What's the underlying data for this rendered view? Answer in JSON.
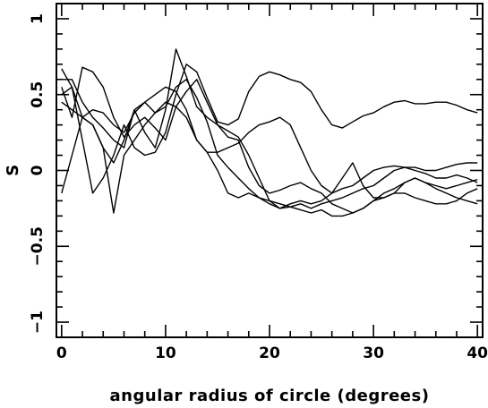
{
  "chart_data": {
    "type": "line",
    "xlabel": "angular radius of circle (degrees)",
    "ylabel": "S",
    "xlim": [
      -0.5,
      40.5
    ],
    "ylim": [
      -1.1,
      1.1
    ],
    "x_major_ticks": [
      0,
      10,
      20,
      30,
      40
    ],
    "x_minor_step": 2,
    "y_major_ticks": [
      -1,
      -0.5,
      0,
      0.5,
      1
    ],
    "y_minor_step": 0.1,
    "y_tick_labels": [
      "−1",
      "−0.5",
      "0",
      "0.5",
      "1"
    ],
    "grid": false,
    "line_color": "#000000",
    "x": [
      0,
      1,
      2,
      3,
      4,
      5,
      6,
      7,
      8,
      9,
      10,
      11,
      12,
      13,
      14,
      15,
      16,
      17,
      18,
      19,
      20,
      21,
      22,
      23,
      24,
      25,
      26,
      27,
      28,
      29,
      30,
      31,
      32,
      33,
      34,
      35,
      36,
      37,
      38,
      39,
      40
    ],
    "series": [
      {
        "values": [
          0.67,
          0.55,
          0.35,
          0.3,
          0.15,
          0.05,
          0.2,
          0.4,
          0.25,
          0.15,
          0.4,
          0.8,
          0.62,
          0.42,
          0.35,
          0.3,
          0.26,
          0.22,
          0.1,
          -0.05,
          -0.2,
          -0.25,
          -0.22,
          -0.2,
          -0.22,
          -0.2,
          -0.15,
          -0.05,
          0.05,
          -0.1,
          -0.18,
          -0.18,
          -0.15,
          -0.08,
          -0.05,
          -0.08,
          -0.12,
          -0.15,
          -0.18,
          -0.2,
          -0.22
        ]
      },
      {
        "values": [
          0.5,
          0.55,
          0.2,
          -0.15,
          -0.05,
          0.1,
          0.3,
          0.15,
          0.1,
          0.12,
          0.25,
          0.5,
          0.7,
          0.65,
          0.48,
          0.32,
          0.3,
          0.34,
          0.52,
          0.62,
          0.65,
          0.63,
          0.6,
          0.58,
          0.52,
          0.4,
          0.3,
          0.28,
          0.32,
          0.36,
          0.38,
          0.42,
          0.45,
          0.46,
          0.44,
          0.44,
          0.45,
          0.45,
          0.43,
          0.4,
          0.38
        ]
      },
      {
        "values": [
          0.55,
          0.35,
          0.68,
          0.65,
          0.55,
          0.35,
          0.22,
          0.3,
          0.35,
          0.28,
          0.2,
          0.42,
          0.52,
          0.6,
          0.45,
          0.3,
          0.22,
          0.2,
          0.02,
          -0.1,
          -0.15,
          -0.13,
          -0.1,
          -0.08,
          -0.12,
          -0.15,
          -0.22,
          -0.25,
          -0.28,
          -0.25,
          -0.2,
          -0.15,
          -0.12,
          -0.08,
          -0.05,
          -0.08,
          -0.1,
          -0.12,
          -0.1,
          -0.08,
          -0.06
        ]
      },
      {
        "values": [
          0.45,
          0.4,
          0.35,
          0.3,
          0.15,
          -0.28,
          0.1,
          0.2,
          0.3,
          0.38,
          0.45,
          0.42,
          0.35,
          0.2,
          0.12,
          0.0,
          -0.15,
          -0.18,
          -0.15,
          -0.18,
          -0.22,
          -0.25,
          -0.24,
          -0.22,
          -0.25,
          -0.22,
          -0.2,
          -0.18,
          -0.15,
          -0.12,
          -0.1,
          -0.05,
          0.0,
          0.02,
          0.02,
          0.0,
          0.0,
          0.02,
          0.04,
          0.05,
          0.05
        ]
      },
      {
        "values": [
          -0.15,
          0.1,
          0.35,
          0.4,
          0.38,
          0.3,
          0.25,
          0.38,
          0.45,
          0.5,
          0.55,
          0.52,
          0.4,
          0.2,
          0.12,
          0.12,
          0.15,
          0.18,
          0.25,
          0.3,
          0.32,
          0.35,
          0.3,
          0.15,
          0.0,
          -0.1,
          -0.15,
          -0.12,
          -0.1,
          -0.05,
          0.0,
          0.02,
          0.03,
          0.02,
          0.0,
          -0.02,
          -0.05,
          -0.05,
          -0.03,
          -0.05,
          -0.08
        ]
      },
      {
        "values": [
          0.6,
          0.6,
          0.45,
          0.35,
          0.28,
          0.2,
          0.15,
          0.4,
          0.45,
          0.38,
          0.42,
          0.55,
          0.6,
          0.48,
          0.32,
          0.1,
          0.02,
          -0.05,
          -0.12,
          -0.18,
          -0.2,
          -0.22,
          -0.24,
          -0.26,
          -0.28,
          -0.26,
          -0.3,
          -0.3,
          -0.28,
          -0.25,
          -0.2,
          -0.18,
          -0.15,
          -0.15,
          -0.18,
          -0.2,
          -0.22,
          -0.22,
          -0.2,
          -0.15,
          -0.12
        ]
      }
    ]
  }
}
